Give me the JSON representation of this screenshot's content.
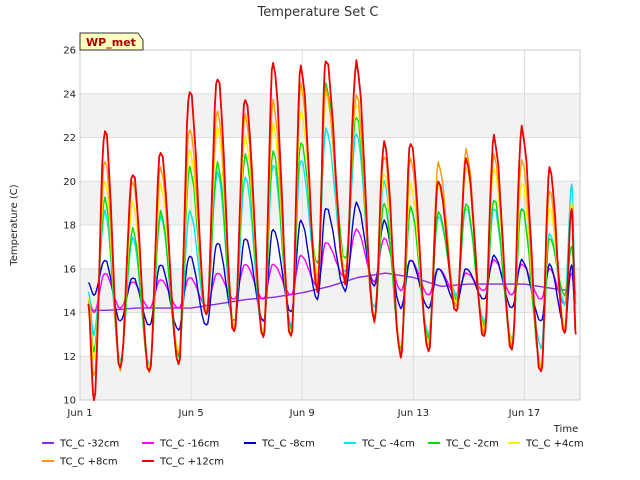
{
  "chart_data": {
    "type": "line",
    "title": "Temperature Set C",
    "xlabel": "Time",
    "ylabel": "Temperature (C)",
    "badge": "WP_met",
    "xlim": [
      0,
      18
    ],
    "ylim": [
      10,
      26
    ],
    "x_ticks": [
      {
        "value": 0,
        "label": "Jun 1"
      },
      {
        "value": 4,
        "label": "Jun 5"
      },
      {
        "value": 8,
        "label": "Jun 9"
      },
      {
        "value": 12,
        "label": "Jun 13"
      },
      {
        "value": 16,
        "label": "Jun 17"
      }
    ],
    "y_ticks": [
      10,
      12,
      14,
      16,
      18,
      20,
      22,
      24,
      26
    ],
    "x_unit": "days since Jun 1",
    "daily_peaks_x": [
      0.9,
      1.9,
      2.9,
      3.95,
      4.95,
      5.95,
      6.95,
      7.95,
      8.85,
      9.95,
      10.95,
      11.9,
      12.9,
      13.9,
      14.9,
      15.9,
      16.9,
      17.7
    ],
    "daily_troughs_x": [
      0.5,
      1.45,
      2.5,
      3.55,
      4.55,
      5.55,
      6.6,
      7.6,
      8.55,
      9.55,
      10.6,
      11.55,
      12.55,
      13.55,
      14.55,
      15.55,
      16.6,
      17.45
    ],
    "series": [
      {
        "name": "TC_C -32cm",
        "color": "#8a2be2",
        "x": [
          0.3,
          1,
          2,
          3,
          4,
          5,
          6,
          7,
          8,
          9,
          10,
          11,
          12,
          13,
          14,
          15,
          16,
          17,
          17.6
        ],
        "y": [
          14.1,
          14.1,
          14.2,
          14.2,
          14.2,
          14.4,
          14.6,
          14.7,
          14.9,
          15.2,
          15.6,
          15.8,
          15.6,
          15.2,
          15.3,
          15.3,
          15.3,
          15.1,
          15.0
        ]
      },
      {
        "name": "TC_C -16cm",
        "color": "#ff00ff",
        "peaks": [
          15.8,
          15.4,
          15.5,
          15.6,
          15.8,
          16.2,
          16.2,
          16.6,
          17.2,
          17.8,
          17.4,
          16.4,
          16.0,
          15.8,
          16.4,
          16.2,
          16.0,
          15.8
        ],
        "troughs": [
          14.0,
          14.2,
          14.2,
          14.2,
          14.3,
          14.6,
          14.6,
          14.8,
          15.2,
          15.6,
          15.4,
          15.0,
          14.8,
          14.8,
          15.0,
          14.8,
          14.6,
          14.4
        ]
      },
      {
        "name": "TC_C -8cm",
        "color": "#0000cc",
        "peaks": [
          16.4,
          15.6,
          16.2,
          16.6,
          17.2,
          17.4,
          17.8,
          18.2,
          18.8,
          19.0,
          18.2,
          16.4,
          16.0,
          16.0,
          16.6,
          16.4,
          16.2,
          16.2
        ],
        "troughs": [
          14.8,
          13.6,
          13.4,
          13.2,
          13.4,
          13.6,
          13.6,
          14.0,
          14.6,
          15.0,
          15.2,
          14.2,
          14.2,
          14.4,
          14.6,
          14.2,
          13.6,
          13.4
        ]
      },
      {
        "name": "TC_C -4cm",
        "color": "#00e5ee",
        "peaks": [
          18.6,
          17.4,
          18.4,
          18.6,
          20.4,
          20.2,
          20.8,
          21.0,
          22.4,
          22.2,
          20.0,
          18.8,
          18.4,
          18.8,
          18.8,
          18.8,
          17.6,
          19.8
        ],
        "troughs": [
          13.0,
          11.8,
          11.6,
          12.2,
          14.0,
          13.2,
          13.0,
          13.4,
          15.6,
          15.8,
          14.2,
          12.4,
          13.0,
          14.8,
          13.6,
          12.8,
          12.4,
          14.4
        ]
      },
      {
        "name": "TC_C -2cm",
        "color": "#00dd00",
        "peaks": [
          19.2,
          17.8,
          18.6,
          20.6,
          20.8,
          21.2,
          21.4,
          21.8,
          24.4,
          23.0,
          19.0,
          18.8,
          18.6,
          19.0,
          19.2,
          18.8,
          17.4,
          17.0
        ],
        "troughs": [
          12.2,
          11.6,
          11.4,
          12.0,
          14.0,
          13.4,
          13.0,
          13.2,
          16.2,
          16.4,
          13.8,
          12.4,
          12.8,
          14.6,
          13.4,
          12.6,
          11.6,
          14.8
        ]
      },
      {
        "name": "TC_C +4cm",
        "color": "#ffee00",
        "peaks": [
          20.0,
          19.0,
          19.8,
          21.4,
          22.4,
          22.0,
          22.6,
          23.2,
          24.0,
          23.6,
          20.4,
          19.8,
          19.8,
          20.6,
          20.6,
          20.0,
          18.8,
          19.0
        ],
        "troughs": [
          11.8,
          11.6,
          11.4,
          12.2,
          14.0,
          13.4,
          13.0,
          13.0,
          15.8,
          16.0,
          13.8,
          12.4,
          12.6,
          14.4,
          13.2,
          12.6,
          11.6,
          13.4
        ]
      },
      {
        "name": "TC_C +8cm",
        "color": "#ff9900",
        "peaks": [
          21.0,
          20.0,
          20.6,
          22.4,
          23.2,
          23.0,
          23.6,
          24.4,
          24.2,
          24.0,
          21.2,
          21.0,
          20.8,
          21.4,
          21.2,
          21.0,
          19.6,
          18.8
        ],
        "troughs": [
          11.0,
          11.4,
          11.2,
          12.0,
          14.0,
          13.2,
          12.8,
          12.8,
          15.4,
          15.6,
          13.6,
          12.2,
          12.4,
          14.2,
          13.0,
          12.4,
          11.4,
          13.2
        ]
      },
      {
        "name": "TC_C +12cm",
        "color": "#ee0000",
        "peaks": [
          22.4,
          20.4,
          21.4,
          24.2,
          24.8,
          23.8,
          25.4,
          25.2,
          25.6,
          25.4,
          21.8,
          21.8,
          20.0,
          21.0,
          22.0,
          22.4,
          20.6,
          18.8
        ],
        "troughs": [
          10.0,
          11.4,
          11.2,
          11.6,
          13.8,
          13.0,
          12.8,
          12.8,
          15.0,
          15.4,
          13.6,
          12.0,
          12.2,
          14.0,
          12.8,
          12.2,
          11.2,
          13.0
        ]
      }
    ],
    "legend_placement": "bottom",
    "grid": true
  }
}
